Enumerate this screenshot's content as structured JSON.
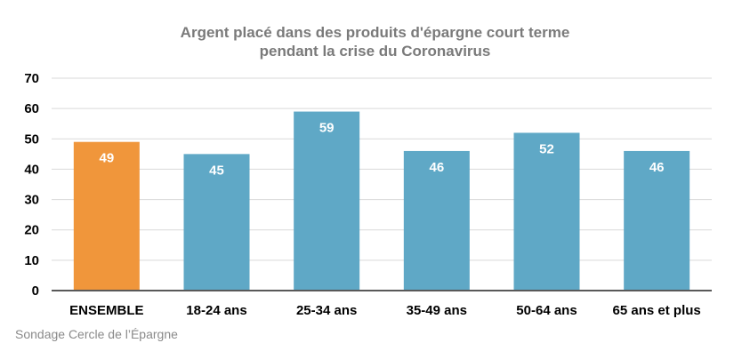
{
  "chart_data": {
    "type": "bar",
    "title": [
      "Argent placé dans des produits d'épargne court terme",
      "pendant la crise du Coronavirus"
    ],
    "categories": [
      "ENSEMBLE",
      "18-24 ans",
      "25-34 ans",
      "35-49 ans",
      "50-64 ans",
      "65 ans et plus"
    ],
    "values": [
      49,
      45,
      59,
      46,
      52,
      46
    ],
    "bar_colors": [
      "#f0963b",
      "#5fa8c6",
      "#5fa8c6",
      "#5fa8c6",
      "#5fa8c6",
      "#5fa8c6"
    ],
    "ylim": [
      0,
      70
    ],
    "yticks": [
      0,
      10,
      20,
      30,
      40,
      50,
      60,
      70
    ],
    "grid": true,
    "data_labels": true,
    "xlabel": "",
    "ylabel": ""
  },
  "source": "Sondage Cercle de l’Épargne"
}
